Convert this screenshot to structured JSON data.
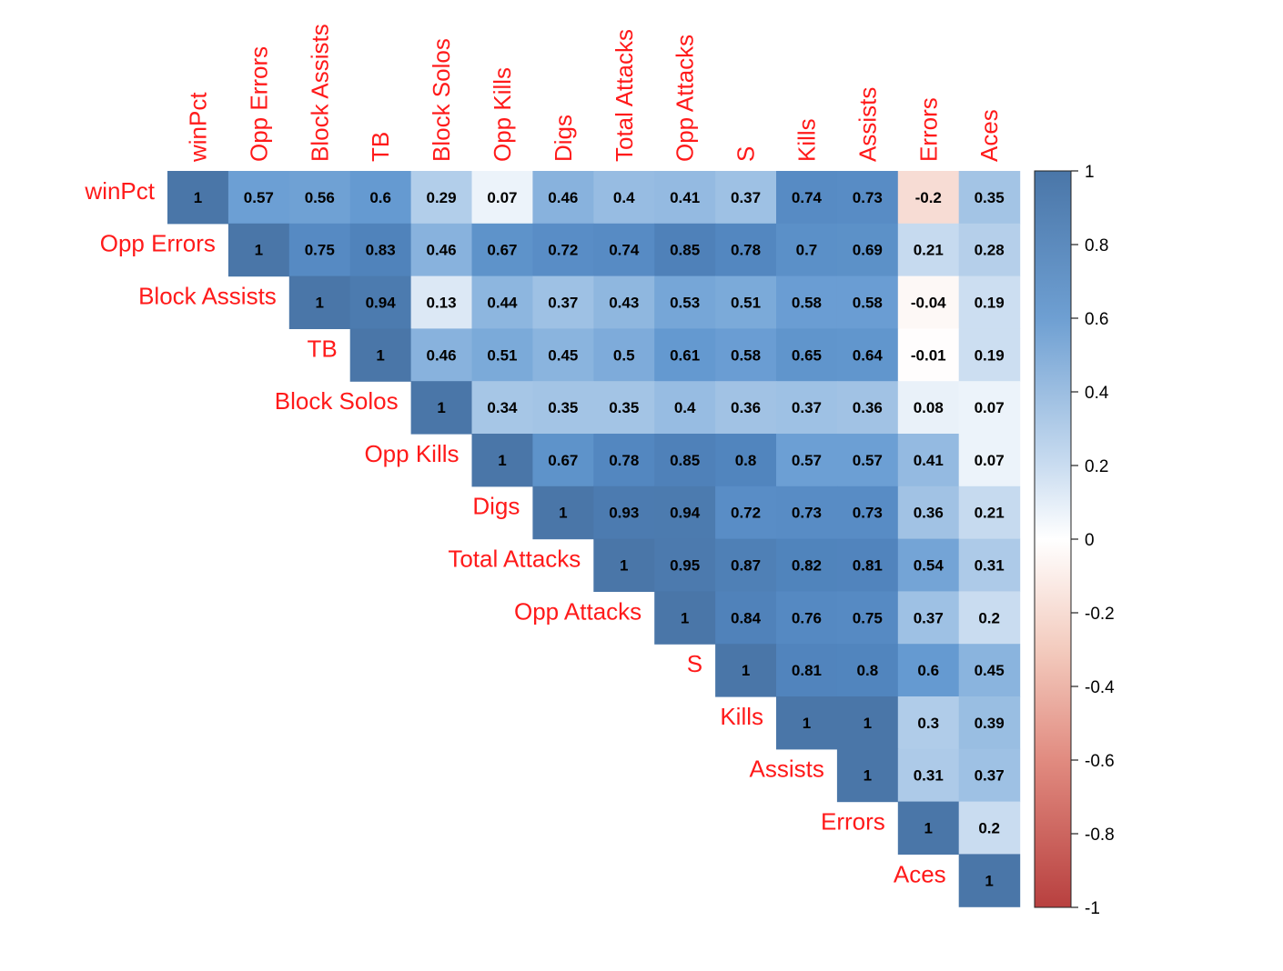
{
  "chart_data": {
    "type": "heatmap",
    "variables": [
      "winPct",
      "Opp Errors",
      "Block Assists",
      "TB",
      "Block Solos",
      "Opp Kills",
      "Digs",
      "Total Attacks",
      "Opp Attacks",
      "S",
      "Kills",
      "Assists",
      "Errors",
      "Aces"
    ],
    "matrix": [
      [
        1,
        0.57,
        0.56,
        0.6,
        0.29,
        0.07,
        0.46,
        0.4,
        0.41,
        0.37,
        0.74,
        0.73,
        -0.2,
        0.35
      ],
      [
        null,
        1,
        0.75,
        0.83,
        0.46,
        0.67,
        0.72,
        0.74,
        0.85,
        0.78,
        0.7,
        0.69,
        0.21,
        0.28
      ],
      [
        null,
        null,
        1,
        0.94,
        0.13,
        0.44,
        0.37,
        0.43,
        0.53,
        0.51,
        0.58,
        0.58,
        -0.04,
        0.19
      ],
      [
        null,
        null,
        null,
        1,
        0.46,
        0.51,
        0.45,
        0.5,
        0.61,
        0.58,
        0.65,
        0.64,
        -0.01,
        0.19
      ],
      [
        null,
        null,
        null,
        null,
        1,
        0.34,
        0.35,
        0.35,
        0.4,
        0.36,
        0.37,
        0.36,
        0.08,
        0.07
      ],
      [
        null,
        null,
        null,
        null,
        null,
        1,
        0.67,
        0.78,
        0.85,
        0.8,
        0.57,
        0.57,
        0.41,
        0.07
      ],
      [
        null,
        null,
        null,
        null,
        null,
        null,
        1,
        0.93,
        0.94,
        0.72,
        0.73,
        0.73,
        0.36,
        0.21
      ],
      [
        null,
        null,
        null,
        null,
        null,
        null,
        null,
        1,
        0.95,
        0.87,
        0.82,
        0.81,
        0.54,
        0.31
      ],
      [
        null,
        null,
        null,
        null,
        null,
        null,
        null,
        null,
        1,
        0.84,
        0.76,
        0.75,
        0.37,
        0.2
      ],
      [
        null,
        null,
        null,
        null,
        null,
        null,
        null,
        null,
        null,
        1,
        0.81,
        0.8,
        0.6,
        0.45
      ],
      [
        null,
        null,
        null,
        null,
        null,
        null,
        null,
        null,
        null,
        null,
        1,
        1,
        0.3,
        0.39
      ],
      [
        null,
        null,
        null,
        null,
        null,
        null,
        null,
        null,
        null,
        null,
        null,
        1,
        0.31,
        0.37
      ],
      [
        null,
        null,
        null,
        null,
        null,
        null,
        null,
        null,
        null,
        null,
        null,
        null,
        1,
        0.2
      ],
      [
        null,
        null,
        null,
        null,
        null,
        null,
        null,
        null,
        null,
        null,
        null,
        null,
        null,
        1
      ]
    ],
    "color_scale": {
      "range": [
        -1,
        1
      ],
      "ticks": [
        "1",
        "0.8",
        "0.6",
        "0.4",
        "0.2",
        "0",
        "-0.2",
        "-0.4",
        "-0.6",
        "-0.8",
        "-1"
      ],
      "colors": {
        "negative": "#b2182b",
        "neutral": "#ffffff",
        "positive": "#2166ac"
      }
    },
    "label_color": "#ff1a1a",
    "legend": "right",
    "title": "",
    "xlabel": "",
    "ylabel": ""
  }
}
